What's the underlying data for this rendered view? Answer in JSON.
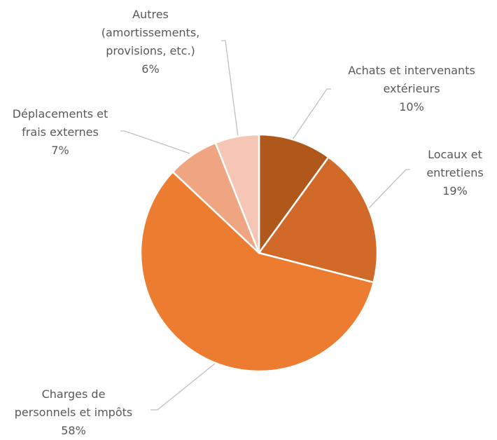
{
  "chart_data": {
    "type": "pie",
    "slices": [
      {
        "label_lines": [
          "Achats et intervenants",
          "extérieurs"
        ],
        "value": 10,
        "pct_label": "10%",
        "color": "#B0581C"
      },
      {
        "label_lines": [
          "Locaux et",
          "entretiens"
        ],
        "value": 19,
        "pct_label": "19%",
        "color": "#D16A28"
      },
      {
        "label_lines": [
          "Charges de",
          "personnels et impôts"
        ],
        "value": 58,
        "pct_label": "58%",
        "color": "#EC7C30"
      },
      {
        "label_lines": [
          "Déplacements et",
          "frais externes"
        ],
        "value": 7,
        "pct_label": "7%",
        "color": "#F0A582"
      },
      {
        "label_lines": [
          "Autres",
          "(amortissements,",
          "provisions, etc.)"
        ],
        "value": 6,
        "pct_label": "6%",
        "color": "#F5C6B5"
      }
    ],
    "legend": "none",
    "slice_border_color": "#FFFFFF",
    "leader_line_color": "#BFBFBF",
    "label_color": "#595959"
  }
}
